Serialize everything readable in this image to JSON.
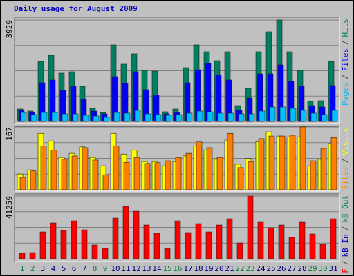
{
  "title": "Daily usage for August 2009",
  "legend_separator": "/",
  "chart_data": [
    {
      "type": "bar",
      "ylim": [
        0,
        3929
      ],
      "yticks": [
        3929
      ],
      "series": [
        {
          "name": "Pages",
          "color": "#00c0ff",
          "values": [
            347,
            267,
            347,
            347,
            294,
            294,
            241,
            214,
            160,
            347,
            321,
            428,
            294,
            267,
            241,
            267,
            321,
            401,
            374,
            321,
            321,
            294,
            294,
            401,
            561,
            561,
            508,
            428,
            321,
            267,
            428
          ]
        },
        {
          "name": "Files",
          "color": "#0000ff",
          "values": [
            428,
            347,
            1497,
            1604,
            1203,
            1363,
            855,
            401,
            294,
            1737,
            1470,
            1925,
            1230,
            1016,
            294,
            347,
            1497,
            2005,
            2245,
            1791,
            1604,
            428,
            909,
            1844,
            1844,
            2192,
            1550,
            1363,
            615,
            561,
            1390
          ]
        },
        {
          "name": "Hits",
          "color": "#008060",
          "values": [
            481,
            401,
            2325,
            2566,
            1871,
            1925,
            1363,
            508,
            347,
            2967,
            2219,
            2620,
            1978,
            1951,
            374,
            481,
            2085,
            2967,
            2700,
            2352,
            2700,
            615,
            1283,
            2700,
            3475,
            3929,
            2700,
            1978,
            775,
            802,
            2325
          ]
        }
      ]
    },
    {
      "type": "bar",
      "ylim": [
        0,
        167
      ],
      "yticks": [
        167
      ],
      "series": [
        {
          "name": "Sites",
          "color": "#ff8000",
          "values": [
            33,
            50,
            116,
            105,
            81,
            90,
            112,
            79,
            40,
            117,
            73,
            86,
            70,
            72,
            77,
            86,
            97,
            127,
            112,
            86,
            150,
            59,
            75,
            136,
            143,
            143,
            145,
            167,
            77,
            110,
            139
          ]
        },
        {
          "name": "Visits",
          "color": "#ffff00",
          "values": [
            42,
            53,
            150,
            130,
            86,
            97,
            114,
            86,
            64,
            150,
            95,
            105,
            75,
            75,
            64,
            75,
            90,
            116,
            106,
            81,
            132,
            68,
            83,
            128,
            154,
            143,
            141,
            141,
            64,
            81,
            123
          ]
        }
      ]
    },
    {
      "type": "bar",
      "ylim": [
        0,
        41259
      ],
      "yticks": [
        41259
      ],
      "series": [
        {
          "name": "kB F",
          "color": "#ff0000",
          "values": [
            3627,
            4080,
            17670,
            23560,
            18570,
            24920,
            19030,
            9066,
            6800,
            26730,
            34430,
            31260,
            22200,
            16770,
            6800,
            24920,
            17220,
            23110,
            17670,
            22200,
            26280,
            10420,
            41259,
            24010,
            20390,
            22200,
            14050,
            24010,
            16310,
            9520,
            26280
          ]
        }
      ],
      "legend_only": [
        {
          "name": "kB In",
          "color": "#0000c0"
        },
        {
          "name": "kB Out",
          "color": "#008060"
        }
      ],
      "categories": [
        "1",
        "2",
        "3",
        "4",
        "5",
        "6",
        "7",
        "8",
        "9",
        "10",
        "11",
        "12",
        "13",
        "14",
        "15",
        "16",
        "17",
        "18",
        "19",
        "20",
        "21",
        "22",
        "23",
        "24",
        "25",
        "26",
        "27",
        "28",
        "29",
        "30",
        "31"
      ],
      "category_colors": [
        "#008040",
        "#008040",
        "#000080",
        "#000080",
        "#000080",
        "#000080",
        "#000080",
        "#008040",
        "#008040",
        "#000080",
        "#000080",
        "#000080",
        "#000080",
        "#000080",
        "#008040",
        "#008040",
        "#000080",
        "#000080",
        "#000080",
        "#000080",
        "#000080",
        "#008040",
        "#008040",
        "#000080",
        "#000080",
        "#000080",
        "#000080",
        "#000080",
        "#008040",
        "#008040",
        "#000080"
      ]
    }
  ]
}
